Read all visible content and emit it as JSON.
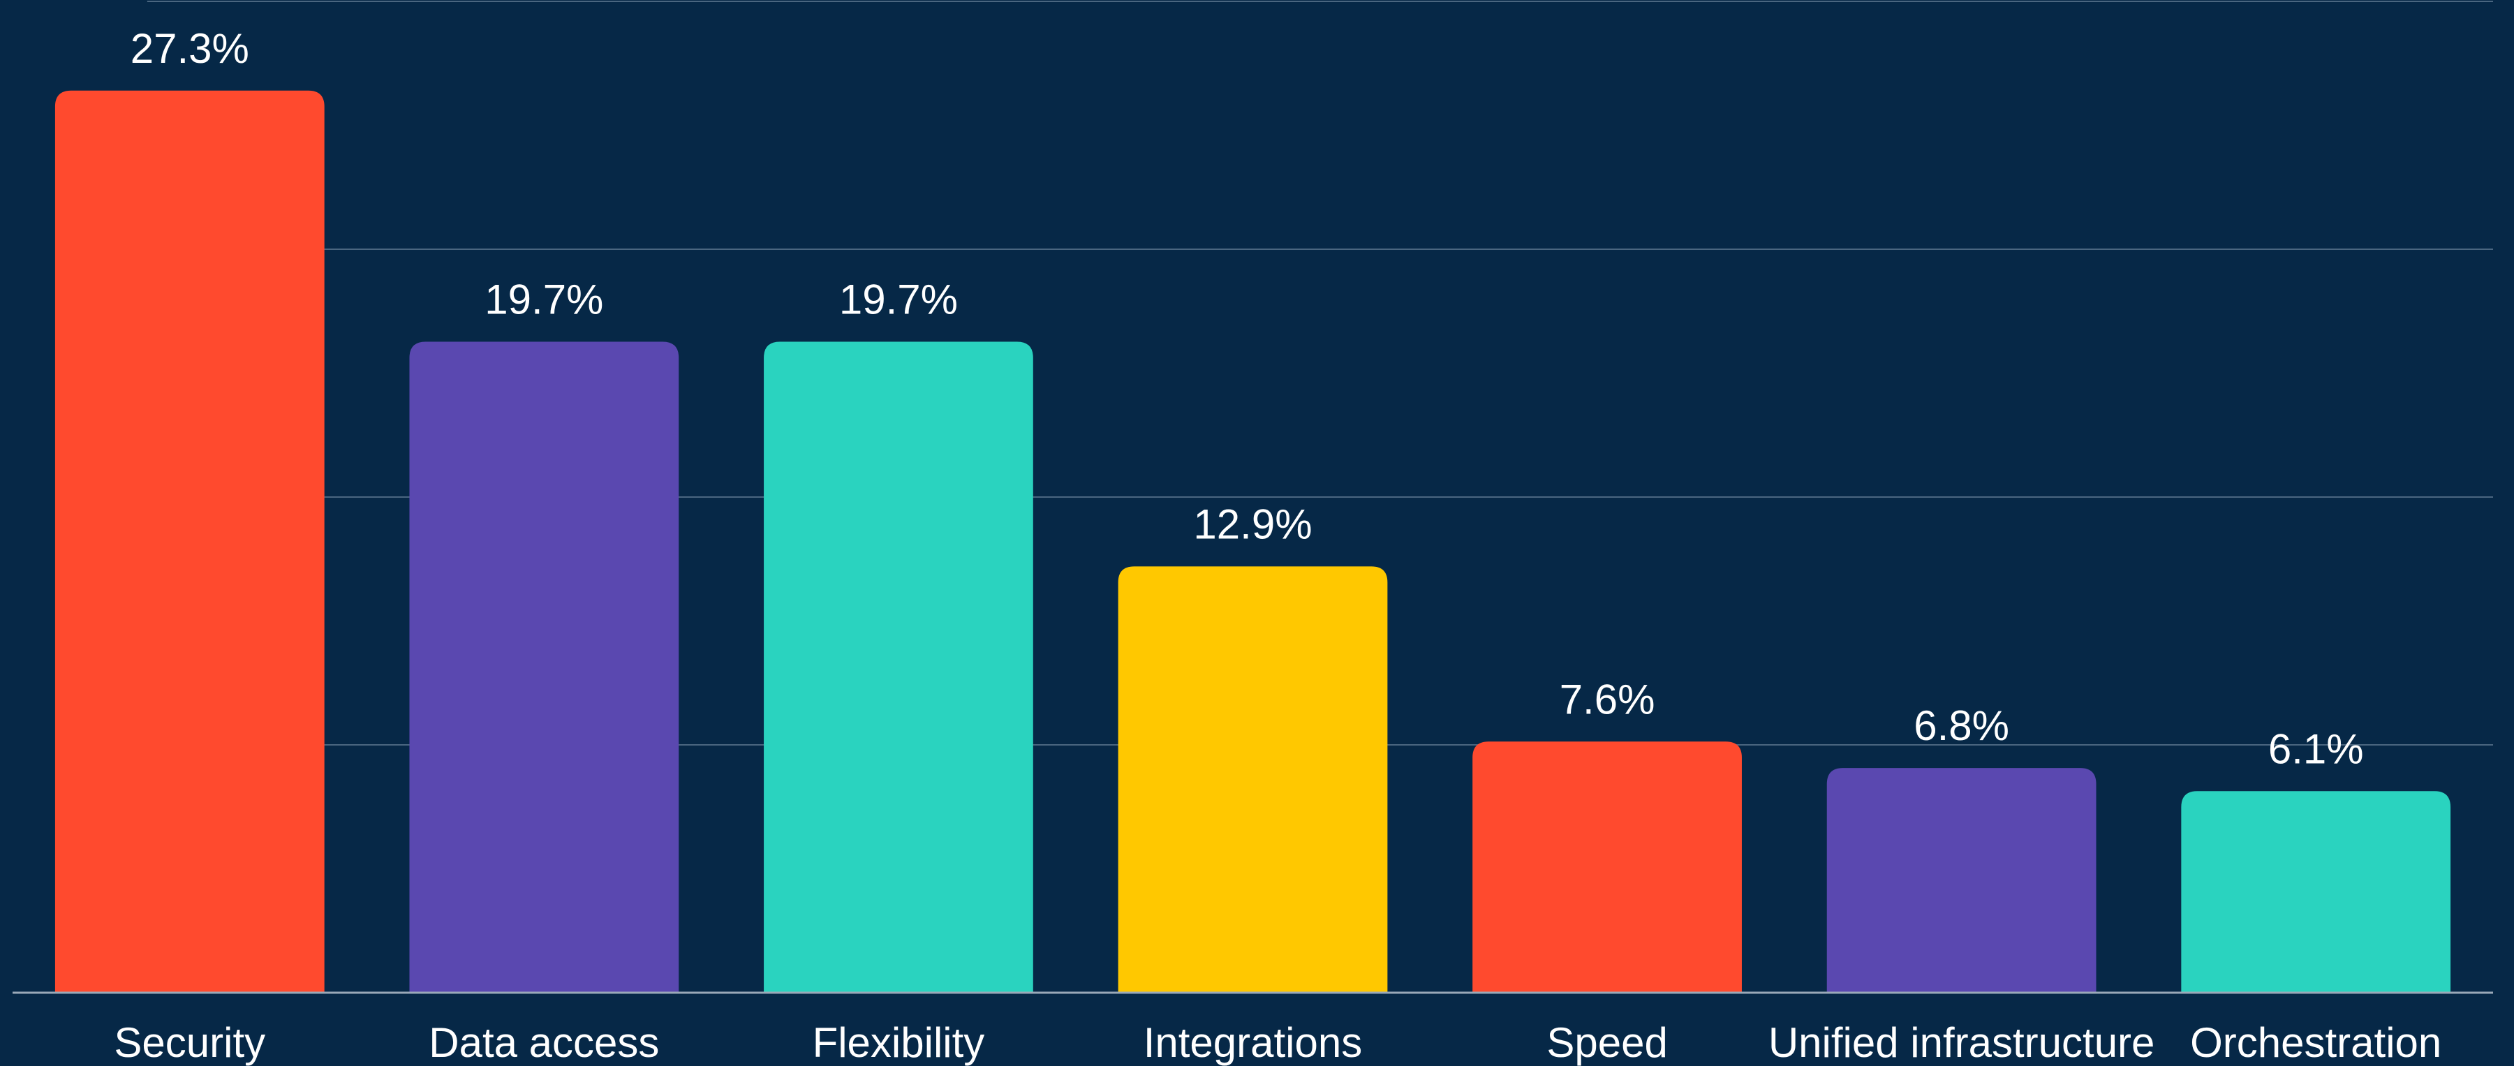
{
  "chart_data": {
    "type": "bar",
    "categories": [
      "Security",
      "Data access",
      "Flexibility",
      "Integrations",
      "Speed",
      "Unified infrastructure",
      "Orchestration"
    ],
    "values": [
      27.3,
      19.7,
      19.7,
      12.9,
      7.6,
      6.8,
      6.1
    ],
    "value_labels": [
      "27.3%",
      "19.7%",
      "19.7%",
      "12.9%",
      "7.6%",
      "6.8%",
      "6.1%"
    ],
    "colors": [
      "#ff4a2e",
      "#5a48b0",
      "#2ad3bf",
      "#ffc800",
      "#ff4a2e",
      "#5a48b0",
      "#2ad3bf"
    ],
    "ylim": [
      0,
      30
    ],
    "yticks": [
      0,
      7.5,
      15,
      22.5,
      30
    ],
    "grid": true
  }
}
